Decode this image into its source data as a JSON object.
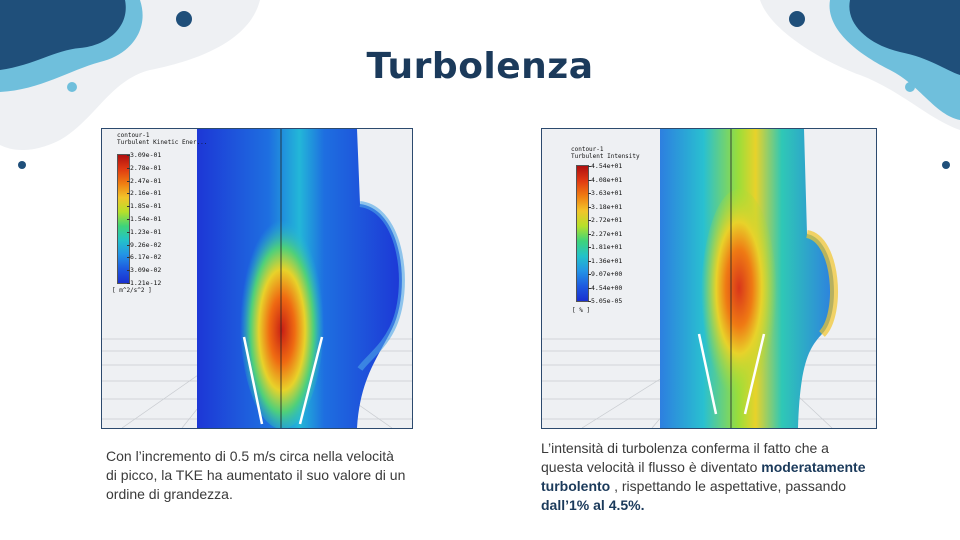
{
  "slide": {
    "title": "Turbolenza"
  },
  "left_panel": {
    "legend_title": "contour-1",
    "legend_quantity": "Turbulent Kinetic Ener...",
    "ticks": [
      "3.09e-01",
      "2.78e-01",
      "2.47e-01",
      "2.16e-01",
      "1.85e-01",
      "1.54e-01",
      "1.23e-01",
      "9.26e-02",
      "6.17e-02",
      "3.09e-02",
      "1.21e-12"
    ],
    "unit": "[ m^2/s^2 ]"
  },
  "right_panel": {
    "legend_title": "contour-1",
    "legend_quantity": "Turbulent Intensity",
    "ticks": [
      "4.54e+01",
      "4.08e+01",
      "3.63e+01",
      "3.18e+01",
      "2.72e+01",
      "2.27e+01",
      "1.81e+01",
      "1.36e+01",
      "9.07e+00",
      "4.54e+00",
      "5.05e-05"
    ],
    "unit": "[ % ]"
  },
  "left_caption": {
    "text": "Con l’incremento di 0.5 m/s circa nella velocità di picco, la TKE ha aumentato il suo valore di un ordine di grandezza."
  },
  "right_caption": {
    "part1": "L’intensità di turbolenza  conferma il fatto che a questa velocità il flusso è diventato ",
    "bold1": "moderatamente turbolento",
    "part2": " , rispettando le aspettative, passando ",
    "bold2": "dall’1% al 4.5%."
  },
  "colors": {
    "title": "#1b3a5b",
    "blob_dark": "#1f4f7a",
    "blob_light": "#6fbfdc",
    "blob_grey": "#eef0f3"
  }
}
